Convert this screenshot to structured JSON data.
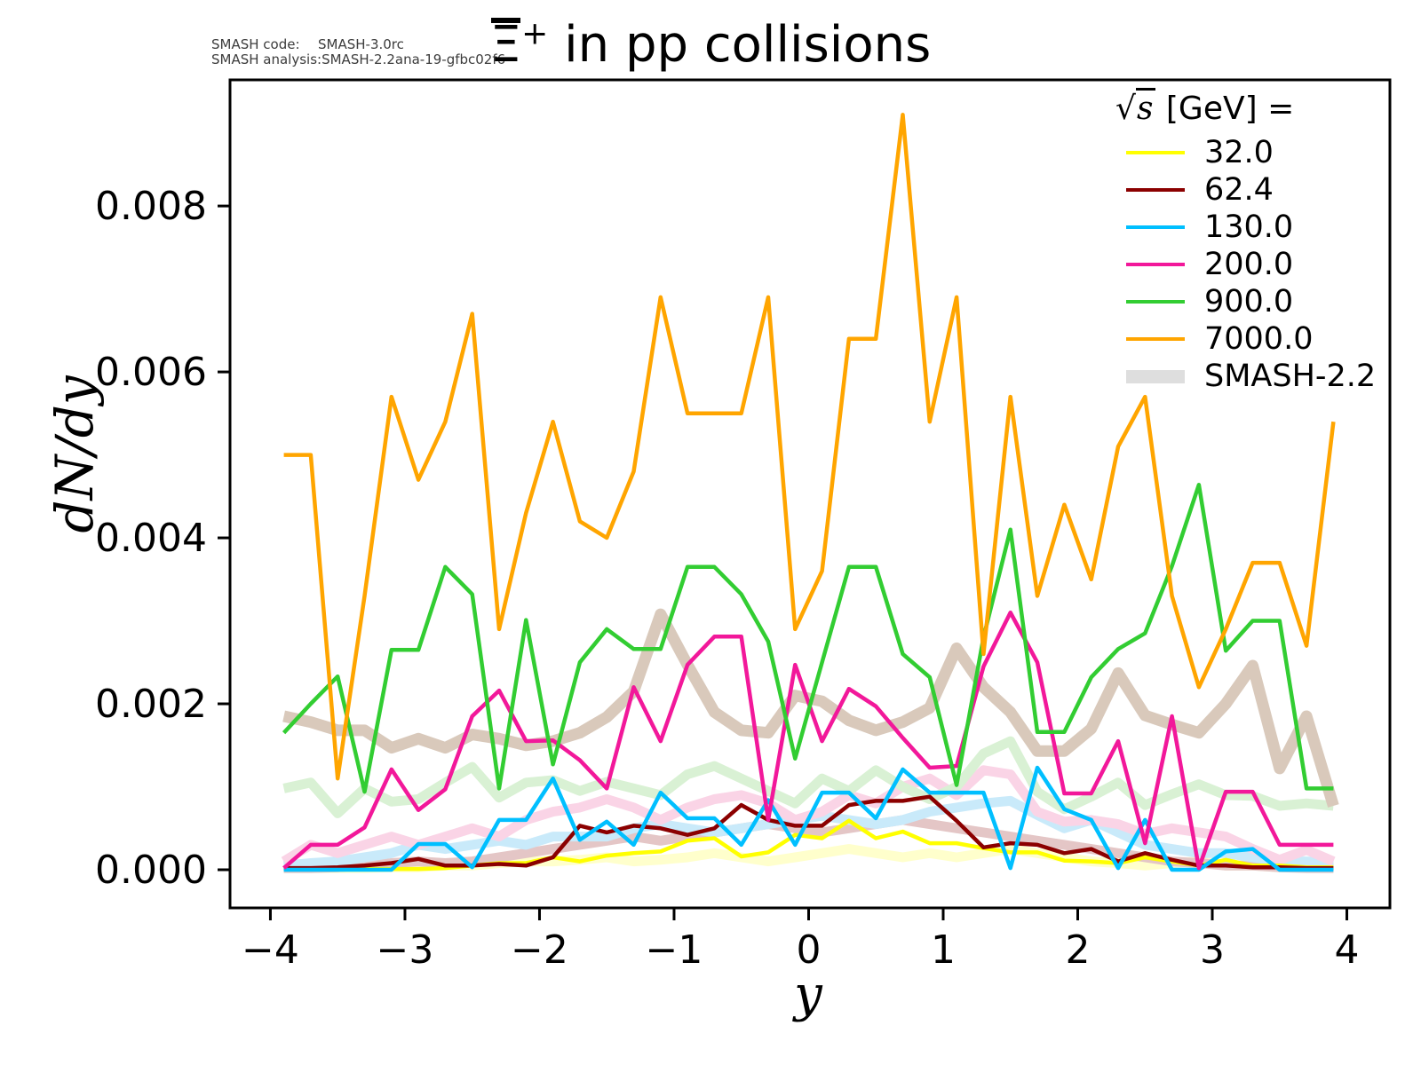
{
  "annotations": {
    "code_label": "SMASH code:",
    "code_value": "SMASH-3.0rc",
    "analysis_label": "SMASH analysis:",
    "analysis_value": "SMASH-2.2ana-19-gfbc02f6"
  },
  "title": {
    "particle": "Ξ",
    "antibar": true,
    "charge": "+",
    "rest": " in pp collisions"
  },
  "legend": {
    "title": {
      "radical": "√",
      "radicand": "s",
      "rest": " [GeV] ="
    },
    "entries": [
      {
        "label": "32.0",
        "color": "#ffff00",
        "thick": false
      },
      {
        "label": "62.4",
        "color": "#8b0000",
        "thick": false
      },
      {
        "label": "130.0",
        "color": "#00bfff",
        "thick": false
      },
      {
        "label": "200.0",
        "color": "#f2189a",
        "thick": false
      },
      {
        "label": "900.0",
        "color": "#32cd32",
        "thick": false
      },
      {
        "label": "7000.0",
        "color": "#ffa500",
        "thick": false
      },
      {
        "label": "SMASH-2.2",
        "color": "#dedede",
        "thick": true
      }
    ]
  },
  "axes": {
    "xlabel": "y",
    "ylabel": "dN/dy",
    "xlim": [
      -4.3,
      4.32
    ],
    "ylim": [
      -0.00046,
      0.00952
    ],
    "xticks": [
      {
        "v": -4,
        "label": "−4"
      },
      {
        "v": -3,
        "label": "−3"
      },
      {
        "v": -2,
        "label": "−2"
      },
      {
        "v": -1,
        "label": "−1"
      },
      {
        "v": 0,
        "label": "0"
      },
      {
        "v": 1,
        "label": "1"
      },
      {
        "v": 2,
        "label": "2"
      },
      {
        "v": 3,
        "label": "3"
      },
      {
        "v": 4,
        "label": "4"
      }
    ],
    "yticks": [
      {
        "v": 0.0,
        "label": "0.000"
      },
      {
        "v": 0.002,
        "label": "0.002"
      },
      {
        "v": 0.004,
        "label": "0.004"
      },
      {
        "v": 0.006,
        "label": "0.006"
      },
      {
        "v": 0.008,
        "label": "0.008"
      }
    ]
  },
  "chart_data": {
    "type": "line",
    "title": "Ξ̄⁺ in pp collisions",
    "xlabel": "y",
    "ylabel": "dN/dy",
    "legend_position": "upper right",
    "grid": false,
    "x": [
      -3.9,
      -3.7,
      -3.5,
      -3.3,
      -3.1,
      -2.9,
      -2.7,
      -2.5,
      -2.3,
      -2.1,
      -1.9,
      -1.7,
      -1.5,
      -1.3,
      -1.1,
      -0.9,
      -0.7,
      -0.5,
      -0.3,
      -0.1,
      0.1,
      0.3,
      0.5,
      0.7,
      0.9,
      1.1,
      1.3,
      1.5,
      1.7,
      1.9,
      2.1,
      2.3,
      2.5,
      2.7,
      2.9,
      3.1,
      3.3,
      3.5,
      3.7,
      3.9
    ],
    "series": [
      {
        "name": "SMASH-2.2 32.0",
        "color": "#ffffcc",
        "width": 11,
        "values": [
          2e-05,
          2e-05,
          2e-05,
          2e-05,
          3e-05,
          3e-05,
          5e-05,
          5e-05,
          8e-05,
          0.0001,
          0.0001,
          0.00012,
          0.00015,
          0.0001,
          0.00012,
          0.00015,
          0.0002,
          0.00015,
          0.0001,
          0.00015,
          0.0002,
          0.00025,
          0.0002,
          0.00015,
          0.0002,
          0.00015,
          0.0002,
          0.00025,
          0.0002,
          0.00015,
          0.0001,
          8e-05,
          5e-05,
          8e-05,
          0.0001,
          5e-05,
          5e-05,
          3e-05,
          3e-05,
          2e-05
        ]
      },
      {
        "name": "SMASH-2.2 62.4",
        "color": "#e4c6c6",
        "width": 11,
        "values": [
          2e-05,
          2e-05,
          3e-05,
          5e-05,
          8e-05,
          0.0001,
          8e-05,
          0.0001,
          0.00015,
          0.0002,
          0.00025,
          0.0003,
          0.00035,
          0.0004,
          0.00035,
          0.0004,
          0.00045,
          0.0005,
          0.00055,
          0.0005,
          0.00045,
          0.0005,
          0.00055,
          0.0006,
          0.00055,
          0.0005,
          0.00045,
          0.0004,
          0.00035,
          0.0003,
          0.00025,
          0.0002,
          0.00015,
          0.0001,
          8e-05,
          5e-05,
          5e-05,
          3e-05,
          2e-05,
          2e-05
        ]
      },
      {
        "name": "SMASH-2.2 130.0",
        "color": "#c9eafa",
        "width": 11,
        "values": [
          5e-05,
          8e-05,
          0.0001,
          0.00015,
          0.0002,
          0.0003,
          0.00025,
          0.0003,
          0.00035,
          0.0003,
          0.0004,
          0.0004,
          0.0004,
          0.0005,
          0.00055,
          0.0005,
          0.00045,
          0.0005,
          0.00055,
          0.0006,
          0.00065,
          0.0006,
          0.00055,
          0.0006,
          0.0007,
          0.00075,
          0.0008,
          0.00083,
          0.00066,
          0.0005,
          0.0006,
          0.00045,
          0.0003,
          0.00025,
          0.0002,
          0.0002,
          0.00015,
          0.0001,
          0.0001,
          8e-05
        ]
      },
      {
        "name": "SMASH-2.2 200.0",
        "color": "#fad4e6",
        "width": 11,
        "values": [
          0.0001,
          0.0003,
          0.0002,
          0.0003,
          0.0004,
          0.0003,
          0.0004,
          0.0005,
          0.0004,
          0.0006,
          0.0007,
          0.00075,
          0.00085,
          0.00075,
          0.0006,
          0.00075,
          0.00085,
          0.0009,
          0.0008,
          0.0006,
          0.0007,
          0.0009,
          0.0008,
          0.001,
          0.0011,
          0.0009,
          0.0012,
          0.00115,
          0.0007,
          0.00058,
          0.0006,
          0.00055,
          0.00043,
          0.0005,
          0.00045,
          0.0004,
          0.00025,
          0.00012,
          0.00024,
          0.0001
        ]
      },
      {
        "name": "SMASH-2.2 900.0",
        "color": "#d9f1d4",
        "width": 11,
        "values": [
          0.00098,
          0.00105,
          0.00068,
          0.00098,
          0.00082,
          0.00085,
          0.00105,
          0.00124,
          0.00087,
          0.00105,
          0.00108,
          0.00095,
          0.00106,
          0.00098,
          0.0009,
          0.00115,
          0.00125,
          0.0011,
          0.00095,
          0.0008,
          0.0011,
          0.00095,
          0.0012,
          0.001,
          0.00085,
          0.001,
          0.0014,
          0.00155,
          0.00094,
          0.00073,
          0.00088,
          0.00105,
          0.00078,
          0.00091,
          0.00103,
          0.0009,
          0.00089,
          0.00077,
          0.0008,
          0.00077
        ]
      },
      {
        "name": "SMASH-2.2 7000.0",
        "color": "#d9c9bb",
        "width": 13,
        "values": [
          0.00185,
          0.00178,
          0.00168,
          0.00168,
          0.00147,
          0.00158,
          0.00147,
          0.00163,
          0.00158,
          0.0015,
          0.00155,
          0.00165,
          0.00184,
          0.00215,
          0.00308,
          0.00247,
          0.0019,
          0.00168,
          0.00165,
          0.0021,
          0.00203,
          0.0018,
          0.00168,
          0.00178,
          0.00195,
          0.00267,
          0.0022,
          0.0019,
          0.00143,
          0.00143,
          0.0017,
          0.00237,
          0.00186,
          0.00175,
          0.00165,
          0.002,
          0.00246,
          0.00122,
          0.00185,
          0.00077
        ]
      },
      {
        "name": "32.0",
        "color": "#ffff00",
        "width": 4.5,
        "values": [
          1e-05,
          1e-05,
          1e-05,
          1e-05,
          1e-05,
          1e-05,
          2e-05,
          5e-05,
          8e-05,
          8e-05,
          0.00015,
          0.0001,
          0.00017,
          0.0002,
          0.00022,
          0.00035,
          0.00038,
          0.00016,
          0.00021,
          0.00042,
          0.00038,
          0.00059,
          0.00038,
          0.00046,
          0.00032,
          0.00032,
          0.00026,
          0.00021,
          0.00021,
          0.00011,
          0.0001,
          8e-05,
          0.00015,
          0.0001,
          5e-05,
          0.00012,
          5e-05,
          5e-05,
          3e-05,
          3e-05
        ]
      },
      {
        "name": "62.4",
        "color": "#8b0000",
        "width": 4.5,
        "values": [
          2e-05,
          2e-05,
          3e-05,
          5e-05,
          8e-05,
          0.00013,
          5e-05,
          5e-05,
          7e-05,
          5e-05,
          0.00015,
          0.00053,
          0.00045,
          0.00053,
          0.0005,
          0.00042,
          0.0005,
          0.00078,
          0.0006,
          0.00053,
          0.00053,
          0.00078,
          0.00083,
          0.00083,
          0.00088,
          0.00059,
          0.00027,
          0.00032,
          0.0003,
          0.0002,
          0.00025,
          0.0001,
          0.0002,
          0.00012,
          5e-05,
          5e-05,
          3e-05,
          3e-05,
          2e-05,
          2e-05
        ]
      },
      {
        "name": "130.0",
        "color": "#00bfff",
        "width": 4.5,
        "values": [
          0.0,
          0.0,
          0.0,
          0.0,
          0.0,
          0.00031,
          0.00031,
          3e-05,
          0.0006,
          0.0006,
          0.0011,
          0.00036,
          0.00058,
          0.0003,
          0.00093,
          0.00062,
          0.00062,
          0.0003,
          0.00084,
          0.0003,
          0.00093,
          0.00093,
          0.00062,
          0.00121,
          0.00093,
          0.00093,
          0.00093,
          2e-05,
          0.00123,
          0.00073,
          0.0006,
          2e-05,
          0.0006,
          0.0,
          0.0,
          0.00022,
          0.00025,
          0.0,
          0.0,
          0.0
        ]
      },
      {
        "name": "200.0",
        "color": "#f2189a",
        "width": 4.5,
        "values": [
          2e-05,
          0.0003,
          0.0003,
          0.00051,
          0.00121,
          0.00072,
          0.00097,
          0.00185,
          0.00216,
          0.00155,
          0.00156,
          0.00132,
          0.00098,
          0.0022,
          0.00155,
          0.00247,
          0.00281,
          0.00281,
          0.0006,
          0.00247,
          0.00155,
          0.00218,
          0.00197,
          0.00159,
          0.00123,
          0.00125,
          0.00245,
          0.0031,
          0.0025,
          0.00092,
          0.00092,
          0.00155,
          0.00032,
          0.00185,
          2e-05,
          0.00094,
          0.00094,
          0.0003,
          0.0003,
          0.0003
        ]
      },
      {
        "name": "900.0",
        "color": "#32cd32",
        "width": 4.5,
        "values": [
          0.00165,
          0.002,
          0.00233,
          0.00094,
          0.00265,
          0.00265,
          0.00365,
          0.00332,
          0.00098,
          0.00301,
          0.00127,
          0.0025,
          0.0029,
          0.00266,
          0.00266,
          0.00365,
          0.00365,
          0.00332,
          0.00275,
          0.00134,
          0.0025,
          0.00365,
          0.00365,
          0.0026,
          0.00232,
          0.00102,
          0.0028,
          0.0041,
          0.00166,
          0.00166,
          0.00232,
          0.00266,
          0.00285,
          0.00366,
          0.00464,
          0.00264,
          0.003,
          0.003,
          0.00098,
          0.00098
        ]
      },
      {
        "name": "7000.0",
        "color": "#ffa500",
        "width": 4.5,
        "values": [
          0.005,
          0.005,
          0.0011,
          0.0033,
          0.0057,
          0.0047,
          0.0054,
          0.0067,
          0.0029,
          0.0043,
          0.0054,
          0.0042,
          0.004,
          0.0048,
          0.0069,
          0.0055,
          0.0055,
          0.0055,
          0.0069,
          0.0029,
          0.0036,
          0.0064,
          0.0064,
          0.0091,
          0.0054,
          0.0069,
          0.0026,
          0.0057,
          0.0033,
          0.0044,
          0.0035,
          0.0051,
          0.0057,
          0.0033,
          0.0022,
          0.0029,
          0.0037,
          0.0037,
          0.0027,
          0.0054
        ]
      }
    ]
  }
}
